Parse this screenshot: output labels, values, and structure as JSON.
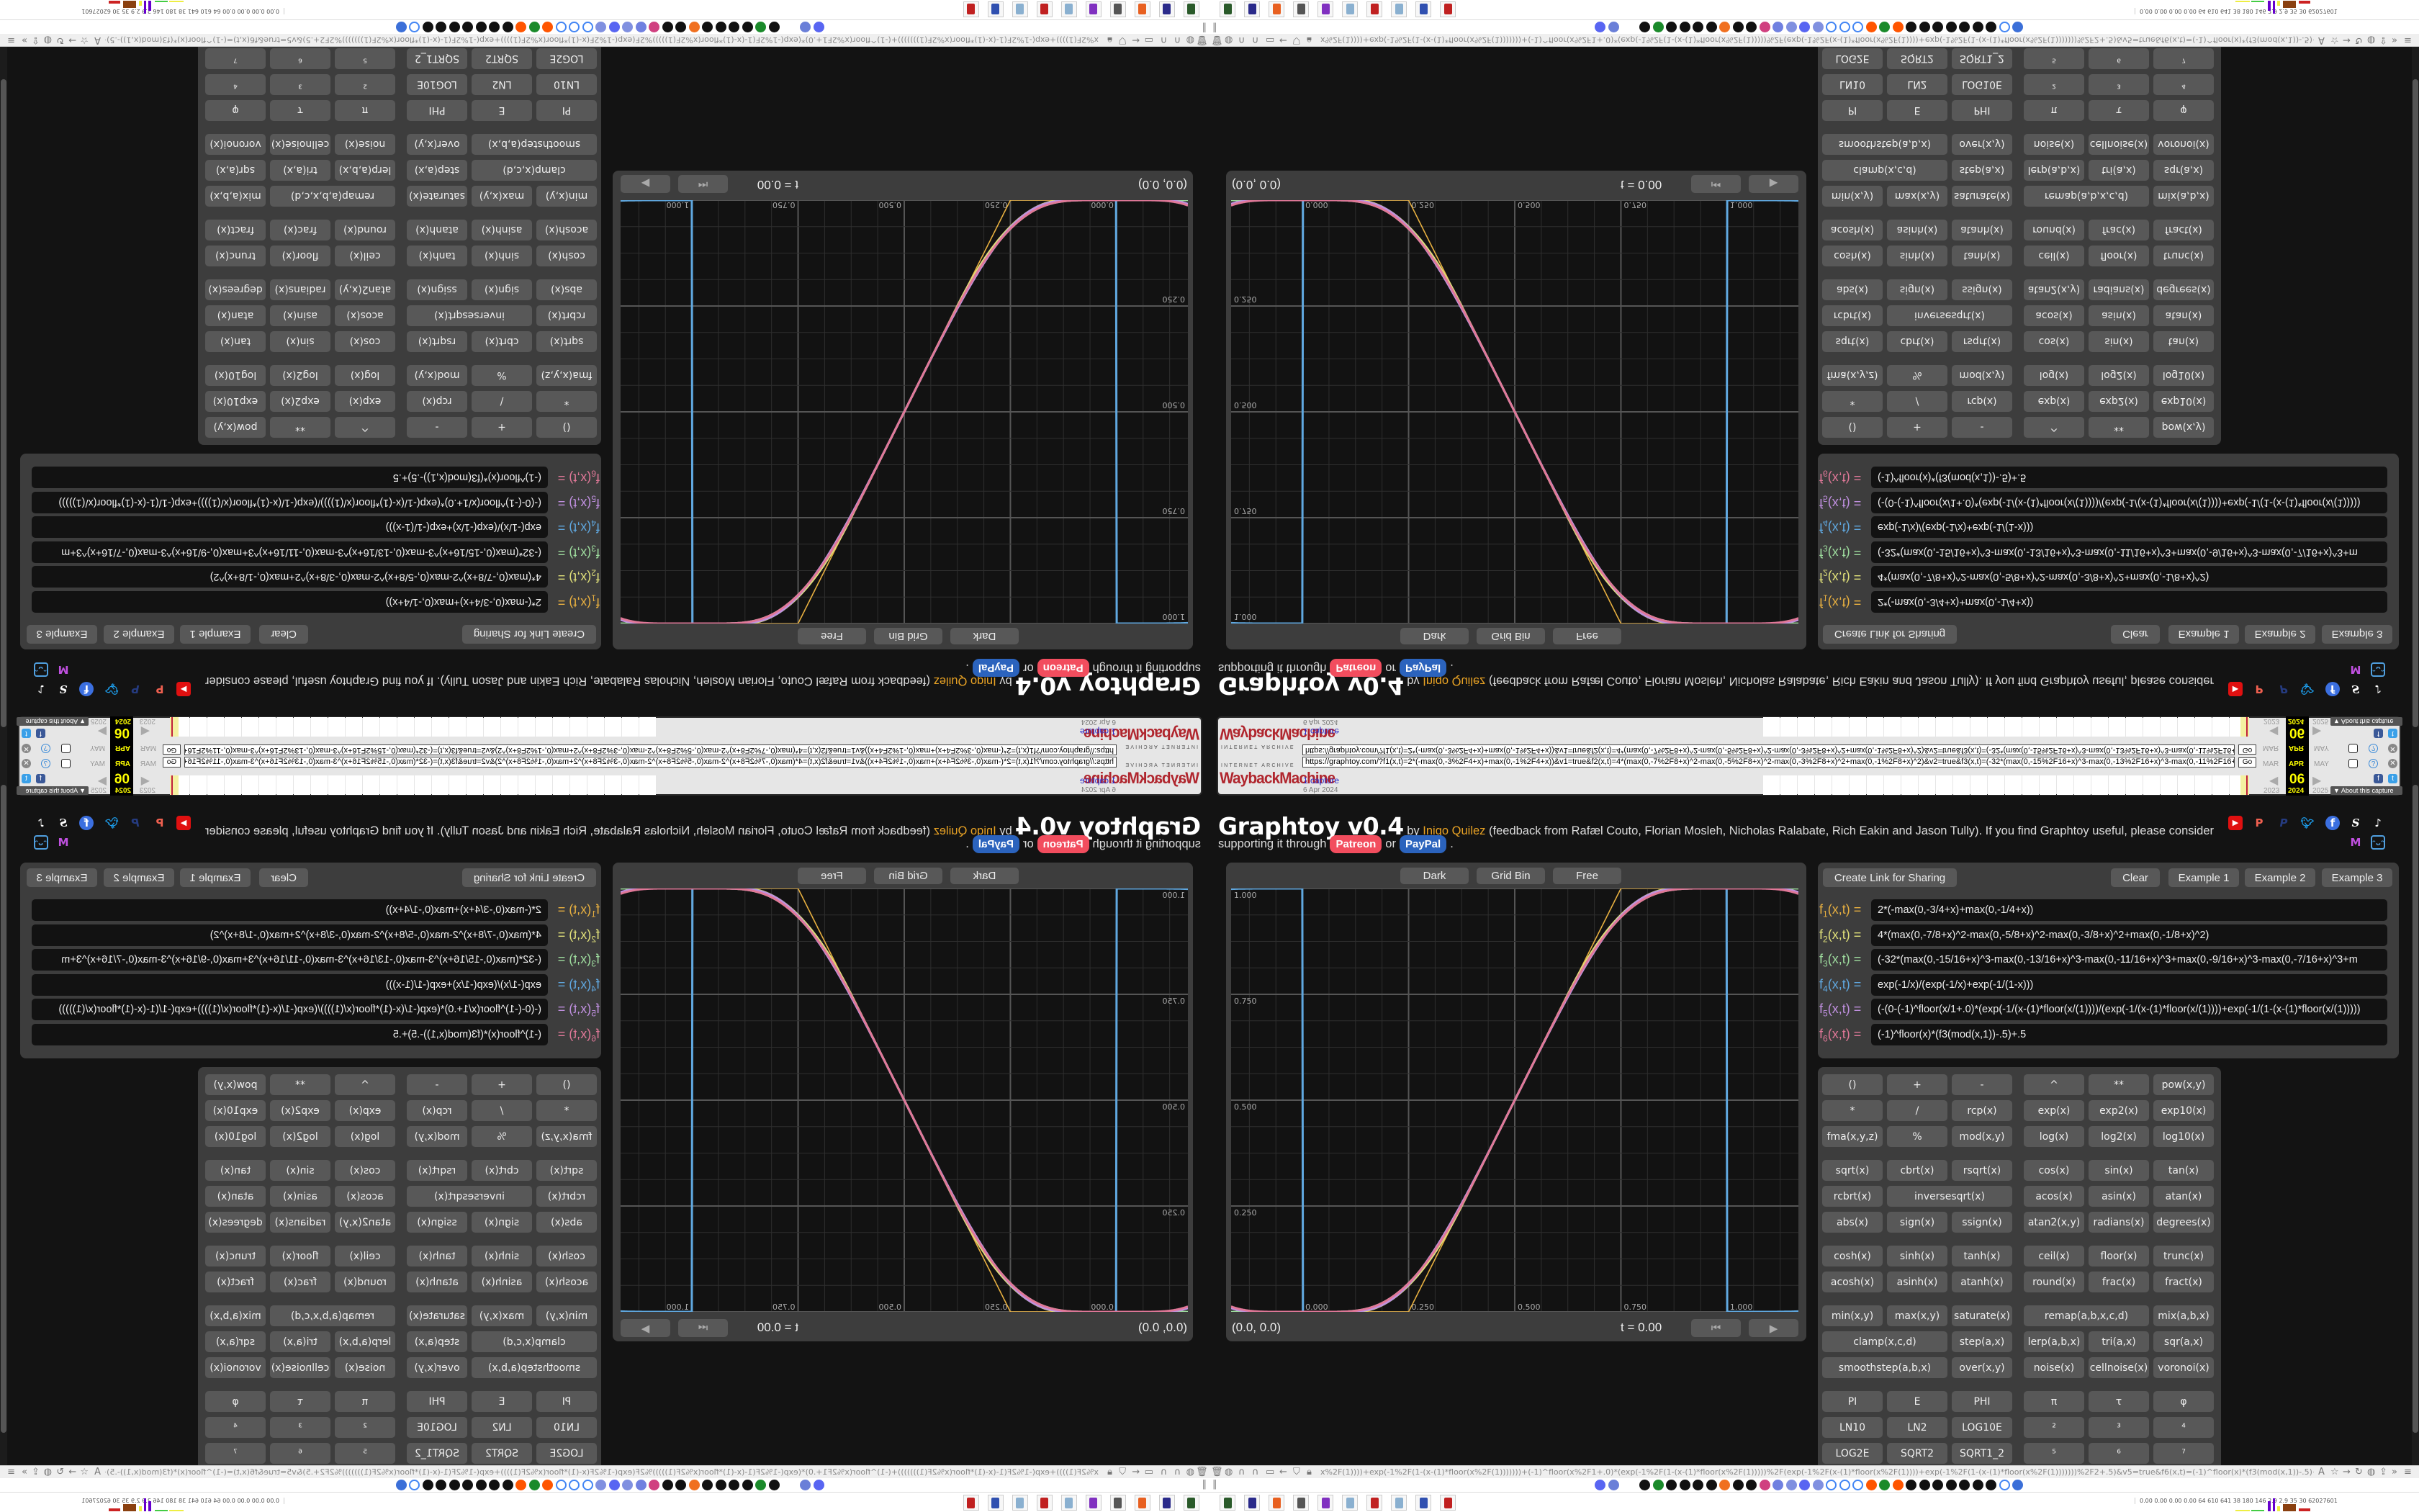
{
  "wayback": {
    "logo_top": "INTERNET ARCHIVE",
    "logo": "WaybackMachine",
    "url": "https://graphtoy.com/?f1(x,t)=2*(-max(0,-3%2F4+x)+max(0,-1%2F4+x))&v1=true&f2(x,t)=4*(max(0,-7%2F8+x)^2-max(0,-5%2F8+x)^2-max(0,-3%2F8+x)^2+max(0,-1%2F8+x)^2)&v2=true&f3(x,t)=(-32*(max(0,-15%2F16+x)^3-max(0,-13%2F16+x)^3-max(0,-11%2F16+x)^3+max(0,-9%2F16+x)^3-max(0,-7%2F16+x)^3",
    "go": "Go",
    "captures": "1 capture",
    "date": "6 Apr 2024",
    "months": [
      "MAR",
      "APR",
      "MAY"
    ],
    "day": "06",
    "years": [
      "2023",
      "2024",
      "2025"
    ],
    "about": "▼ About this capture",
    "accent": "#ffff00"
  },
  "header": {
    "title": "Graphtoy v0.4",
    "by": " by ",
    "author": "Inigo Quilez",
    "feedback": " (feedback from Rafæl Couto, Florian Mosleh, Nicholas Ralabate, Rich Eakin and Jason Tully). If you find Graphtoy useful, please consider",
    "support": "supporting it through",
    "patreon": "Patreon",
    "or": "or",
    "paypal": "PayPal",
    "period": ".",
    "social_icons": [
      "youtube-icon",
      "patreon-icon",
      "paypal-icon",
      "twitter-icon",
      "facebook-icon",
      "shadertoy-icon",
      "tiktok-icon",
      "mastodon-icon",
      "bilibili-icon"
    ]
  },
  "graph": {
    "buttons": [
      "Dark",
      "Grid Bin",
      "Free"
    ],
    "x_range": [
      -0.168,
      1.168
    ],
    "y_range": [
      0,
      1
    ],
    "x_ticks": [
      "0.000",
      "0.250",
      "0.500",
      "0.750",
      "1.000"
    ],
    "y_ticks": [
      "1.000",
      "0.750",
      "0.500",
      "0.250"
    ],
    "coords": "(0.0, 0.0)",
    "time": "t = 0.00",
    "controls": [
      "rewind-icon",
      "play-icon"
    ]
  },
  "functions_panel": {
    "create_link": "Create Link for Sharing",
    "clear": "Clear",
    "examples": [
      "Example 1",
      "Example 2",
      "Example 3"
    ],
    "functions": [
      {
        "sub": "1",
        "args": "(x,t) =",
        "color": "#e8b040",
        "expr": "2*(-max(0,-3/4+x)+max(0,-1/4+x))"
      },
      {
        "sub": "2",
        "args": "(x,t) =",
        "color": "#e0e07a",
        "expr": "4*(max(0,-7/8+x)^2-max(0,-5/8+x)^2-max(0,-3/8+x)^2+max(0,-1/8+x)^2)"
      },
      {
        "sub": "3",
        "args": "(x,t) =",
        "color": "#9edc9e",
        "expr": "(-32*(max(0,-15/16+x)^3-max(0,-13/16+x)^3-max(0,-11/16+x)^3+max(0,-9/16+x)^3-max(0,-7/16+x)^3+m"
      },
      {
        "sub": "4",
        "args": "(x,t) =",
        "color": "#60a8e0",
        "expr": "exp(-1/x)/(exp(-1/x)+exp(-1/(1-x)))"
      },
      {
        "sub": "5",
        "args": "(x,t) =",
        "color": "#c090e0",
        "expr": "(-(0-(-1)^floor(x/1+.0)*(exp(-1/(x-(1)*floor(x/(1))))/(exp(-1/(x-(1)*floor(x/(1))))+exp(-1/(1-(x-(1)*floor(x/(1)))))"
      },
      {
        "sub": "6",
        "args": "(x,t) =",
        "color": "#e07898",
        "expr": "(-1)^floor(x)*(f3(mod(x,1))-.5)+.5"
      }
    ]
  },
  "keypad": [
    [
      [
        "()",
        "+",
        "-",
        "^",
        "**",
        "pow(x,y)"
      ],
      [
        "*",
        "/",
        "rcp(x)",
        "exp(x)",
        "exp2(x)",
        "exp10(x)"
      ],
      [
        "fma(x,y,z)",
        "%",
        "mod(x,y)",
        "log(x)",
        "log2(x)",
        "log10(x)"
      ]
    ],
    [
      [
        "sqrt(x)",
        "cbrt(x)",
        "rsqrt(x)",
        "cos(x)",
        "sin(x)",
        "tan(x)"
      ],
      [
        "rcbrt(x)",
        "inversesqrt(x)|2",
        "acos(x)",
        "asin(x)",
        "atan(x)"
      ],
      [
        "abs(x)",
        "sign(x)",
        "ssign(x)",
        "atan2(x,y)",
        "radians(x)",
        "degrees(x)"
      ]
    ],
    [
      [
        "cosh(x)",
        "sinh(x)",
        "tanh(x)",
        "ceil(x)",
        "floor(x)",
        "trunc(x)"
      ],
      [
        "acosh(x)",
        "asinh(x)",
        "atanh(x)",
        "round(x)",
        "frac(x)",
        "fract(x)"
      ]
    ],
    [
      [
        "min(x,y)",
        "max(x,y)",
        "saturate(x)",
        "remap(a,b,x,c,d)|2",
        "mix(a,b,x)"
      ],
      [
        "clamp(x,c,d)|2",
        "step(a,x)",
        "lerp(a,b,x)",
        "tri(a,x)",
        "sqr(a,x)"
      ],
      [
        "smoothstep(a,b,x)|2",
        "over(x,y)",
        "noise(x)",
        "cellnoise(x)",
        "voronoi(x)"
      ]
    ],
    [
      [
        "PI",
        "E",
        "PHI",
        "π",
        "τ",
        "φ"
      ],
      [
        "LN10",
        "LN2",
        "LOG10E",
        "²",
        "³",
        "⁴"
      ],
      [
        "LOG2E",
        "SQRT2",
        "SQRT1_2",
        "⁵",
        "⁶",
        "⁷"
      ]
    ]
  ],
  "browser": {
    "address": "x%2F(1))))+exp(-1%2F(1-(x-(1)*floor(x%2F(1)))))))+(-1)^floor(x%2F1+.0)*(exp(-1%2F(1-(x-(1)*floor(x%2F(1)))))%2F(exp(-1%2F(x-(1)*floor(x%2F(1))))+exp(-1%2F(1-(x-(1)*floor(x%2F(1)))))))%2F2+.5)&v5=true&f6(x,t)=(-1)^floor(x)*(f3(mod(x,1))-.5)+.5&v6=true&grid=2&coords=0.5,0.5,0.6669354838709677",
    "left_icons": [
      "trash-icon",
      "globe-icon",
      "headphones-icon",
      "headphones-icon",
      "folder-icon",
      "back-icon",
      "shield-icon",
      "lock-icon"
    ],
    "right_icons": [
      "translate-icon",
      "star-icon",
      "forward-icon",
      "reload-icon",
      "globe-icon",
      "share-icon",
      "more-icon",
      "menu-icon"
    ],
    "bookmark_colors": [
      "#5865f2",
      "#6a7fd8",
      "#111",
      "#1a8a2a",
      "#111",
      "#111",
      "#111",
      "#111",
      "#f07020",
      "#111",
      "#111",
      "#d04080",
      "#7080e0",
      "#8090e0",
      "#5865f2",
      "#8090e0",
      "#ffffff",
      "#ffffff",
      "#ffffff",
      "#ff5500",
      "#1a8a2a",
      "#ff5500",
      "#111",
      "#111",
      "#111",
      "#111",
      "#111",
      "#111",
      "#111",
      "#ffffff",
      "#3b6fd8"
    ],
    "taskbar_colors": [
      "#2a5a2a",
      "#2a2a8a",
      "#e86020",
      "#555",
      "#8030c0",
      "#8ab0d0",
      "#c02020",
      "#8ab0d0",
      "#3050b0",
      "#c02020"
    ],
    "stats": "0.00 0.00 0.00 0.00   64   610   641   38   180   146   2.9   2.9   35   30   62027601"
  }
}
